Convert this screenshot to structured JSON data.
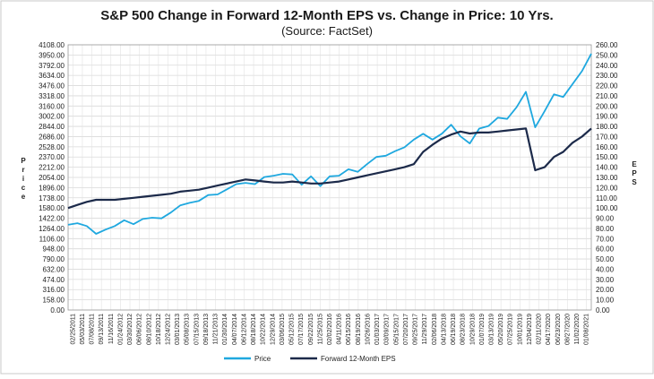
{
  "chart_data": {
    "type": "line",
    "title": "S&P 500 Change in Forward 12-Month EPS vs. Change in Price: 10 Yrs.",
    "subtitle": "(Source: FactSet)",
    "ylabel_left_letters": [
      "P",
      "r",
      "i",
      "c",
      "e"
    ],
    "ylabel_right_letters": [
      "E",
      "P",
      "S"
    ],
    "ylim_left": [
      0,
      4108
    ],
    "ylim_right": [
      0,
      260
    ],
    "grid": true,
    "legend_position": "bottom-center",
    "y_left_ticks": [
      "0.00",
      "158.00",
      "316.00",
      "474.00",
      "632.00",
      "790.00",
      "948.00",
      "1106.00",
      "1264.00",
      "1422.00",
      "1580.00",
      "1738.00",
      "1896.00",
      "2054.00",
      "2212.00",
      "2370.00",
      "2528.00",
      "2686.00",
      "2844.00",
      "3002.00",
      "3160.00",
      "3318.00",
      "3476.00",
      "3634.00",
      "3792.00",
      "3950.00",
      "4108.00"
    ],
    "y_right_ticks": [
      "0.00",
      "10.00",
      "20.00",
      "30.00",
      "40.00",
      "50.00",
      "60.00",
      "70.00",
      "80.00",
      "90.00",
      "100.00",
      "110.00",
      "120.00",
      "130.00",
      "140.00",
      "150.00",
      "160.00",
      "170.00",
      "180.00",
      "190.00",
      "200.00",
      "210.00",
      "220.00",
      "230.00",
      "240.00",
      "250.00",
      "260.00"
    ],
    "x_tick_labels": [
      "02/25/2011",
      "05/03/2011",
      "07/08/2011",
      "09/13/2011",
      "11/16/2011",
      "01/24/2012",
      "03/30/2012",
      "06/06/2012",
      "08/10/2012",
      "10/18/2012",
      "12/24/2012",
      "03/01/2013",
      "05/08/2013",
      "07/15/2013",
      "09/18/2013",
      "11/21/2013",
      "01/30/2014",
      "04/07/2014",
      "06/12/2014",
      "08/18/2014",
      "10/22/2014",
      "12/29/2014",
      "03/06/2015",
      "05/12/2015",
      "07/17/2015",
      "09/22/2015",
      "11/25/2015",
      "02/02/2016",
      "04/11/2016",
      "06/15/2016",
      "08/19/2016",
      "10/26/2016",
      "01/03/2017",
      "03/09/2017",
      "05/15/2017",
      "07/20/2017",
      "09/25/2017",
      "11/29/2017",
      "02/06/2018",
      "04/13/2018",
      "06/19/2018",
      "08/23/2018",
      "10/29/2018",
      "01/07/2019",
      "03/13/2019",
      "05/20/2019",
      "07/25/2019",
      "10/01/2019",
      "12/04/2019",
      "02/11/2020",
      "04/17/2020",
      "06/23/2020",
      "08/27/2020",
      "11/02/2020",
      "01/08/2021"
    ],
    "series": [
      {
        "name": "Price",
        "axis": "left",
        "color": "#1fa8df",
        "values": [
          1320,
          1345,
          1300,
          1180,
          1245,
          1300,
          1390,
          1330,
          1410,
          1430,
          1420,
          1510,
          1620,
          1660,
          1690,
          1780,
          1790,
          1870,
          1950,
          1970,
          1950,
          2060,
          2080,
          2110,
          2100,
          1940,
          2070,
          1920,
          2070,
          2080,
          2180,
          2140,
          2260,
          2370,
          2390,
          2460,
          2520,
          2640,
          2730,
          2640,
          2730,
          2870,
          2690,
          2580,
          2810,
          2850,
          2980,
          2960,
          3140,
          3380,
          2830,
          3080,
          3340,
          3300,
          3500,
          3700,
          3970
        ]
      },
      {
        "name": "Forward 12-Month EPS",
        "axis": "right",
        "color": "#1c2a4a",
        "values": [
          100,
          103,
          106,
          108,
          108,
          108,
          109,
          110,
          111,
          112,
          113,
          114,
          116,
          117,
          118,
          120,
          122,
          124,
          126,
          128,
          127,
          126,
          125,
          125,
          126,
          125,
          124,
          124,
          125,
          126,
          128,
          130,
          132,
          134,
          136,
          138,
          140,
          143,
          155,
          162,
          168,
          172,
          175,
          173,
          174,
          174,
          175,
          176,
          177,
          178,
          137,
          140,
          150,
          155,
          164,
          170,
          178
        ]
      }
    ]
  }
}
